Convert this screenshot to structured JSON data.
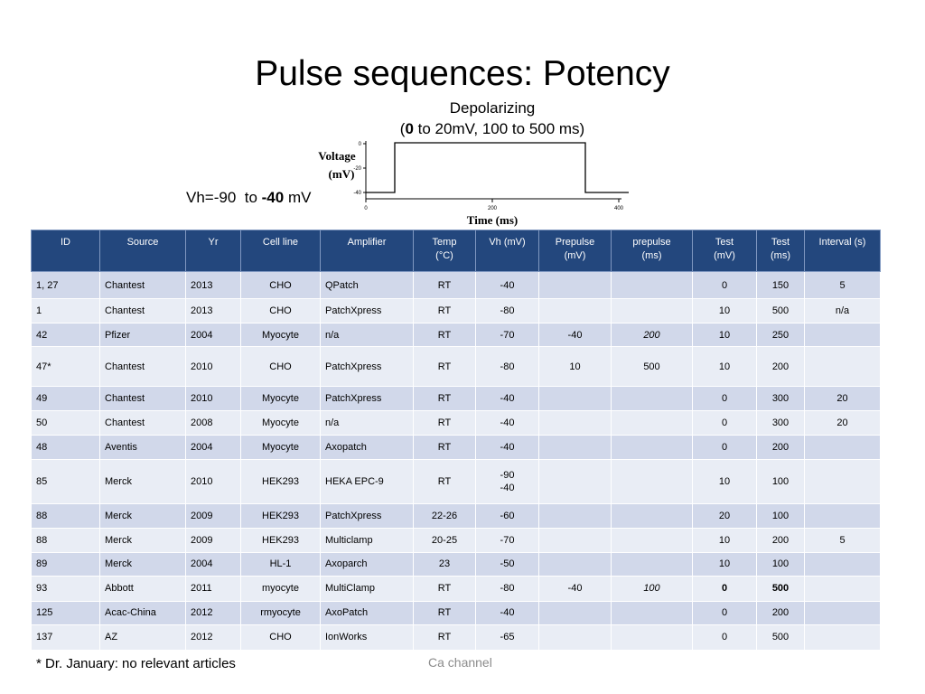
{
  "title": "Pulse sequences: Potency",
  "protocol": {
    "line1": "Depolarizing",
    "line2_open": "(",
    "line2_bold": "0",
    "line2_rest": " to 20mV, 100 to 500 ms)",
    "vh_prefix": "Vh=-90  to ",
    "vh_bold": "-40",
    "vh_suffix": " mV"
  },
  "waveform": {
    "y_axis_label_1": "Voltage",
    "y_axis_label_2": "(mV)",
    "y_ticks": [
      "0",
      "-20",
      "-40"
    ],
    "x_axis_label": "Time (ms)",
    "x_ticks": [
      "0",
      "200",
      "400"
    ]
  },
  "table": {
    "headers": [
      {
        "l1": "ID",
        "l2": ""
      },
      {
        "l1": "Source",
        "l2": ""
      },
      {
        "l1": "Yr",
        "l2": ""
      },
      {
        "l1": "Cell line",
        "l2": ""
      },
      {
        "l1": "Amplifier",
        "l2": ""
      },
      {
        "l1": "Temp",
        "l2": "(°C)"
      },
      {
        "l1": "Vh (mV)",
        "l2": ""
      },
      {
        "l1": "Prepulse",
        "l2": "(mV)"
      },
      {
        "l1": "prepulse",
        "l2": "(ms)"
      },
      {
        "l1": "Test",
        "l2": "(mV)"
      },
      {
        "l1": "Test",
        "l2": "(ms)"
      },
      {
        "l1": "Interval (s)",
        "l2": ""
      }
    ],
    "rows": [
      {
        "id": "1, 27",
        "source": "Chantest",
        "yr": "2013",
        "cell": "CHO",
        "amp": "QPatch",
        "temp": "RT",
        "vh": "-40",
        "vh2": "",
        "pre_mv": "",
        "pre_ms": "",
        "test_mv": "0",
        "test_ms": "150",
        "interval": "5"
      },
      {
        "id": "1",
        "source": "Chantest",
        "yr": "2013",
        "cell": "CHO",
        "amp": "PatchXpress",
        "temp": "RT",
        "vh": "-80",
        "vh2": "",
        "pre_mv": "",
        "pre_ms": "",
        "test_mv": "10",
        "test_ms": "500",
        "interval": "n/a"
      },
      {
        "id": "42",
        "source": "Pfizer",
        "yr": "2004",
        "cell": "Myocyte",
        "amp": "n/a",
        "temp": "RT",
        "vh": "-70",
        "vh2": "",
        "pre_mv": "-40",
        "pre_ms": "200",
        "test_mv": "10",
        "test_ms": "250",
        "interval": ""
      },
      {
        "id": "47*",
        "source": "Chantest",
        "yr": "2010",
        "cell": "CHO",
        "amp": "PatchXpress",
        "temp": "RT",
        "vh": "-80",
        "vh2": "",
        "pre_mv": "10",
        "pre_ms": "500",
        "test_mv": "10",
        "test_ms": "200",
        "interval": ""
      },
      {
        "id": "49",
        "source": "Chantest",
        "yr": "2010",
        "cell": "Myocyte",
        "amp": "PatchXpress",
        "temp": "RT",
        "vh": "-40",
        "vh2": "",
        "pre_mv": "",
        "pre_ms": "",
        "test_mv": "0",
        "test_ms": "300",
        "interval": "20"
      },
      {
        "id": "50",
        "source": "Chantest",
        "yr": "2008",
        "cell": "Myocyte",
        "amp": "n/a",
        "temp": "RT",
        "vh": "-40",
        "vh2": "",
        "pre_mv": "",
        "pre_ms": "",
        "test_mv": "0",
        "test_ms": "300",
        "interval": "20"
      },
      {
        "id": "48",
        "source": "Aventis",
        "yr": "2004",
        "cell": "Myocyte",
        "amp": "Axopatch",
        "temp": "RT",
        "vh": "-40",
        "vh2": "",
        "pre_mv": "",
        "pre_ms": "",
        "test_mv": "0",
        "test_ms": "200",
        "interval": ""
      },
      {
        "id": "85",
        "source": "Merck",
        "yr": "2010",
        "cell": "HEK293",
        "amp": "HEKA EPC-9",
        "temp": "RT",
        "vh": "-90",
        "vh2": "-40",
        "pre_mv": "",
        "pre_ms": "",
        "test_mv": "10",
        "test_ms": "100",
        "interval": ""
      },
      {
        "id": "88",
        "source": "Merck",
        "yr": "2009",
        "cell": "HEK293",
        "amp": "PatchXpress",
        "temp": "22-26",
        "vh": "-60",
        "vh2": "",
        "pre_mv": "",
        "pre_ms": "",
        "test_mv": "20",
        "test_ms": "100",
        "interval": ""
      },
      {
        "id": "88",
        "source": "Merck",
        "yr": "2009",
        "cell": "HEK293",
        "amp": "Multiclamp",
        "temp": "20-25",
        "vh": "-70",
        "vh2": "",
        "pre_mv": "",
        "pre_ms": "",
        "test_mv": "10",
        "test_ms": "200",
        "interval": "5"
      },
      {
        "id": "89",
        "source": "Merck",
        "yr": "2004",
        "cell": "HL-1",
        "amp": "Axoparch",
        "temp": "23",
        "vh": "-50",
        "vh2": "",
        "pre_mv": "",
        "pre_ms": "",
        "test_mv": "10",
        "test_ms": "100",
        "interval": ""
      },
      {
        "id": "93",
        "source": "Abbott",
        "yr": "2011",
        "cell": "myocyte",
        "amp": "MultiClamp",
        "temp": "RT",
        "vh": "-80",
        "vh2": "",
        "pre_mv": "-40",
        "pre_ms": "100",
        "test_mv": "0",
        "test_ms": "500",
        "interval": ""
      },
      {
        "id": "125",
        "source": "Acac-China",
        "yr": "2012",
        "cell": "rmyocyte",
        "amp": "AxoPatch",
        "temp": "RT",
        "vh": "-40",
        "vh2": "",
        "pre_mv": "",
        "pre_ms": "",
        "test_mv": "0",
        "test_ms": "200",
        "interval": ""
      },
      {
        "id": "137",
        "source": "AZ",
        "yr": "2012",
        "cell": "CHO",
        "amp": "IonWorks",
        "temp": "RT",
        "vh": "-65",
        "vh2": "",
        "pre_mv": "",
        "pre_ms": "",
        "test_mv": "0",
        "test_ms": "500",
        "interval": ""
      }
    ]
  },
  "footnote": "* Dr. January: no relevant articles",
  "footer": "Ca channel"
}
